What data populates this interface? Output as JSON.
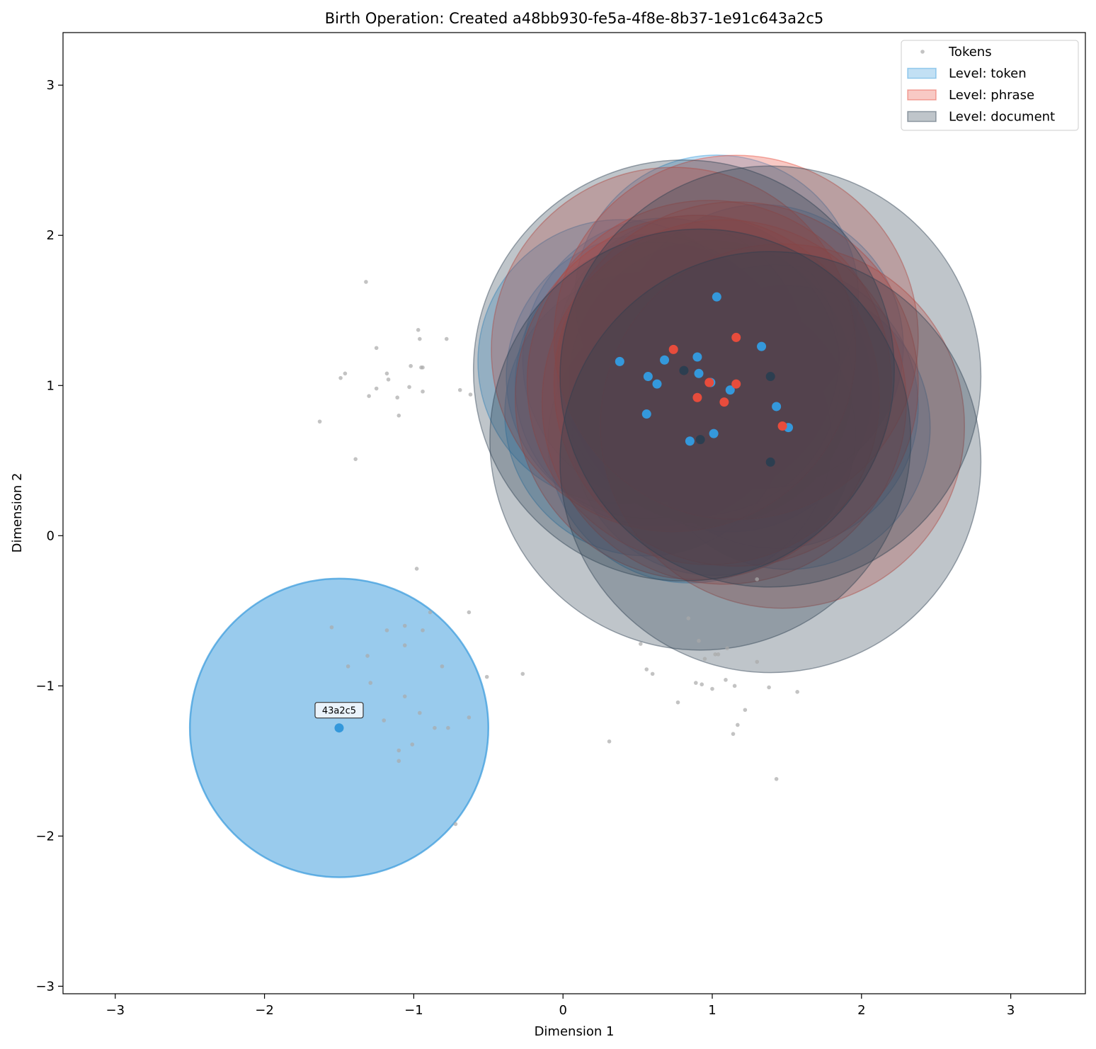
{
  "chart_data": {
    "type": "scatter",
    "title": "Birth Operation: Created a48bb930-fe5a-4f8e-8b37-1e91c643a2c5",
    "xlabel": "Dimension 1",
    "ylabel": "Dimension 2",
    "xlim": [
      -3.35,
      3.5
    ],
    "ylim": [
      -3.05,
      3.35
    ],
    "xticks": [
      -3,
      -2,
      -1,
      0,
      1,
      2,
      3
    ],
    "yticks": [
      -3,
      -2,
      -1,
      0,
      1,
      2,
      3
    ],
    "tick_labels_x": [
      "−3",
      "−2",
      "−1",
      "0",
      "1",
      "2",
      "3"
    ],
    "tick_labels_y": [
      "−3",
      "−2",
      "−1",
      "0",
      "1",
      "2",
      "3"
    ],
    "grid": false,
    "legend_position": "top-right",
    "legend": [
      {
        "label": "Tokens",
        "kind": "marker",
        "color": "#aaaaaa"
      },
      {
        "label": "Level: token",
        "kind": "patch",
        "color": "#3498db"
      },
      {
        "label": "Level: phrase",
        "kind": "patch",
        "color": "#e74c3c"
      },
      {
        "label": "Level: document",
        "kind": "patch",
        "color": "#2c3e50"
      }
    ],
    "colors": {
      "token": "#3498db",
      "phrase": "#e74c3c",
      "document": "#2c3e50",
      "tokens": "#aaaaaa"
    },
    "tokens": [
      [
        -1.32,
        1.69
      ],
      [
        -0.97,
        1.37
      ],
      [
        -0.96,
        1.31
      ],
      [
        -0.78,
        1.31
      ],
      [
        -1.25,
        1.25
      ],
      [
        -1.02,
        1.13
      ],
      [
        -0.95,
        1.12
      ],
      [
        -0.94,
        1.12
      ],
      [
        -1.18,
        1.08
      ],
      [
        -1.46,
        1.08
      ],
      [
        -1.49,
        1.05
      ],
      [
        -1.17,
        1.04
      ],
      [
        -1.03,
        0.99
      ],
      [
        -1.25,
        0.98
      ],
      [
        -0.94,
        0.96
      ],
      [
        -0.69,
        0.97
      ],
      [
        -0.62,
        0.94
      ],
      [
        -1.3,
        0.93
      ],
      [
        -1.11,
        0.92
      ],
      [
        -1.1,
        0.8
      ],
      [
        -1.63,
        0.76
      ],
      [
        -1.39,
        0.51
      ],
      [
        -0.98,
        -0.22
      ],
      [
        -0.63,
        -0.51
      ],
      [
        -0.89,
        -0.51
      ],
      [
        -1.55,
        -0.61
      ],
      [
        -1.06,
        -0.6
      ],
      [
        -1.18,
        -0.63
      ],
      [
        -0.94,
        -0.63
      ],
      [
        -1.06,
        -0.73
      ],
      [
        -1.31,
        -0.8
      ],
      [
        -0.81,
        -0.87
      ],
      [
        -1.44,
        -0.87
      ],
      [
        -0.51,
        -0.94
      ],
      [
        -0.27,
        -0.92
      ],
      [
        -1.29,
        -0.98
      ],
      [
        -1.06,
        -1.07
      ],
      [
        -0.96,
        -1.18
      ],
      [
        -1.2,
        -1.23
      ],
      [
        -0.63,
        -1.21
      ],
      [
        -0.86,
        -1.28
      ],
      [
        -0.77,
        -1.28
      ],
      [
        -1.01,
        -1.39
      ],
      [
        -1.1,
        -1.43
      ],
      [
        -1.1,
        -1.5
      ],
      [
        -0.72,
        -1.92
      ],
      [
        0.84,
        -0.55
      ],
      [
        0.52,
        -0.72
      ],
      [
        0.91,
        -0.7
      ],
      [
        1.1,
        -0.75
      ],
      [
        1.02,
        -0.79
      ],
      [
        1.04,
        -0.79
      ],
      [
        0.95,
        -0.82
      ],
      [
        1.3,
        -0.84
      ],
      [
        0.56,
        -0.89
      ],
      [
        0.6,
        -0.92
      ],
      [
        0.89,
        -0.98
      ],
      [
        0.93,
        -0.99
      ],
      [
        1.09,
        -0.96
      ],
      [
        1.15,
        -1.0
      ],
      [
        1.38,
        -1.01
      ],
      [
        1.0,
        -1.02
      ],
      [
        1.57,
        -1.04
      ],
      [
        0.77,
        -1.11
      ],
      [
        1.22,
        -1.16
      ],
      [
        1.17,
        -1.26
      ],
      [
        1.14,
        -1.32
      ],
      [
        0.31,
        -1.37
      ],
      [
        1.43,
        -1.62
      ],
      [
        1.3,
        -0.29
      ]
    ],
    "regions": [
      {
        "level": "token",
        "center": [
          1.03,
          1.59
        ],
        "radius": 0.95
      },
      {
        "level": "token",
        "center": [
          0.38,
          1.16
        ],
        "radius": 0.95
      },
      {
        "level": "token",
        "center": [
          0.57,
          1.06
        ],
        "radius": 0.95
      },
      {
        "level": "token",
        "center": [
          0.63,
          1.01
        ],
        "radius": 0.95
      },
      {
        "level": "token",
        "center": [
          0.68,
          1.17
        ],
        "radius": 0.95
      },
      {
        "level": "token",
        "center": [
          0.9,
          1.19
        ],
        "radius": 0.95
      },
      {
        "level": "token",
        "center": [
          0.91,
          1.08
        ],
        "radius": 0.95
      },
      {
        "level": "token",
        "center": [
          0.99,
          1.02
        ],
        "radius": 0.95
      },
      {
        "level": "token",
        "center": [
          1.12,
          0.97
        ],
        "radius": 0.95
      },
      {
        "level": "token",
        "center": [
          1.33,
          1.26
        ],
        "radius": 0.95
      },
      {
        "level": "token",
        "center": [
          0.56,
          0.81
        ],
        "radius": 0.95
      },
      {
        "level": "token",
        "center": [
          1.43,
          0.86
        ],
        "radius": 0.95
      },
      {
        "level": "token",
        "center": [
          1.51,
          0.72
        ],
        "radius": 0.95
      },
      {
        "level": "token",
        "center": [
          0.85,
          0.63
        ],
        "radius": 0.95
      },
      {
        "level": "token",
        "center": [
          1.01,
          0.68
        ],
        "radius": 0.95
      },
      {
        "level": "phrase",
        "center": [
          0.74,
          1.24
        ],
        "radius": 1.22
      },
      {
        "level": "phrase",
        "center": [
          1.16,
          1.32
        ],
        "radius": 1.22
      },
      {
        "level": "phrase",
        "center": [
          0.98,
          1.02
        ],
        "radius": 1.22
      },
      {
        "level": "phrase",
        "center": [
          1.16,
          1.01
        ],
        "radius": 1.22
      },
      {
        "level": "phrase",
        "center": [
          0.9,
          0.92
        ],
        "radius": 1.22
      },
      {
        "level": "phrase",
        "center": [
          1.08,
          0.89
        ],
        "radius": 1.22
      },
      {
        "level": "phrase",
        "center": [
          1.47,
          0.73
        ],
        "radius": 1.22
      },
      {
        "level": "document",
        "center": [
          0.81,
          1.1
        ],
        "radius": 1.41
      },
      {
        "level": "document",
        "center": [
          1.39,
          1.06
        ],
        "radius": 1.41
      },
      {
        "level": "document",
        "center": [
          0.92,
          0.64
        ],
        "radius": 1.41
      },
      {
        "level": "document",
        "center": [
          1.39,
          0.49
        ],
        "radius": 1.41
      },
      {
        "level": "token",
        "center": [
          -1.5,
          -1.28
        ],
        "radius": 1.0,
        "highlight": true,
        "label": "43a2c5"
      }
    ]
  }
}
